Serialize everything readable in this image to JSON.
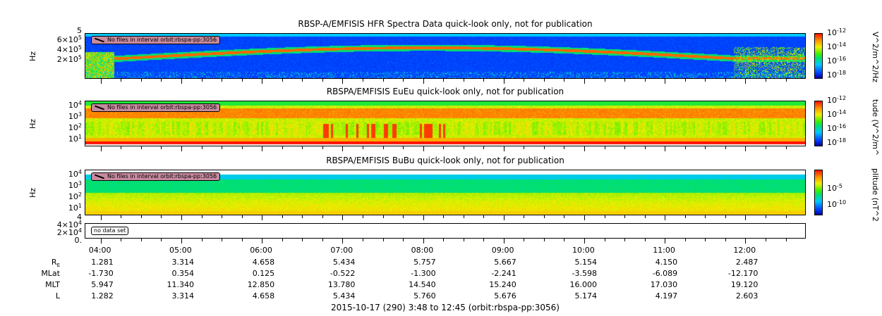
{
  "chart_data": {
    "type": "heatmap",
    "x_axis": {
      "start": "3:48",
      "end": "12:45",
      "tick_labels": [
        "04:00",
        "05:00",
        "06:00",
        "07:00",
        "08:00",
        "09:00",
        "10:00",
        "11:00",
        "12:00"
      ]
    },
    "panels": [
      {
        "title": "RBSP-A/EMFISIS  HFR Spectra Data quick-look only, not for publication",
        "ylabel": "Hz",
        "yticks": [
          "6×10",
          "4×10",
          "2×10"
        ],
        "ytick_top": "5",
        "ytick_exp": "5",
        "notice": "No files in interval orbit:rbspa-pp:3056",
        "colorbar": {
          "label": "V^2/m^2/Hz",
          "ticks": [
            "-12",
            "-14",
            "-16",
            "-18"
          ]
        },
        "palette": "dark-blue background with red/yellow plasma line"
      },
      {
        "title": "RBSPA/EMFISIS  EuEu quick-look only, not for publication",
        "ylabel": "Hz",
        "yticks": [
          "4",
          "3",
          "2",
          "1"
        ],
        "notice": "No files in interval orbit:rbspa-pp:3056",
        "colorbar": {
          "label": "tude (V^2/m^",
          "ticks": [
            "-12",
            "-14",
            "-16",
            "-18"
          ]
        },
        "palette": "green/yellow/red"
      },
      {
        "title": "RBSPA/EMFISIS  BuBu quick-look only, not for publication",
        "ylabel": "Hz",
        "yticks": [
          "4",
          "3",
          "2",
          "1"
        ],
        "notice": "No files in interval orbit:rbspa-pp:3056",
        "colorbar": {
          "label": "plitude (nT^2",
          "ticks": [
            "-5",
            "-10"
          ]
        },
        "palette": "cyan/green/yellow"
      },
      {
        "title": "",
        "ylabel": "",
        "yticks": [
          "4×10",
          "2×10",
          "0."
        ],
        "ytick_exp": "4",
        "ytick_top": "4",
        "notice": "no data set"
      }
    ],
    "ephemeris": {
      "labels": [
        "R",
        "MLat",
        "MLT",
        "L"
      ],
      "re_sub": "E",
      "rows": [
        [
          "1.281",
          "3.314",
          "4.658",
          "5.434",
          "5.757",
          "5.667",
          "5.154",
          "4.150",
          "2.487"
        ],
        [
          "-1.730",
          "0.354",
          "0.125",
          "-0.522",
          "-1.300",
          "-2.241",
          "-3.598",
          "-6.089",
          "-12.170"
        ],
        [
          "5.947",
          "11.340",
          "12.850",
          "13.780",
          "14.540",
          "15.240",
          "16.000",
          "17.030",
          "19.120"
        ],
        [
          "1.282",
          "3.314",
          "4.658",
          "5.434",
          "5.760",
          "5.676",
          "5.174",
          "4.197",
          "2.603"
        ]
      ]
    },
    "footer": "2015-10-17 (290) 3:48 to 12:45 (orbit:rbspa-pp:3056)"
  }
}
